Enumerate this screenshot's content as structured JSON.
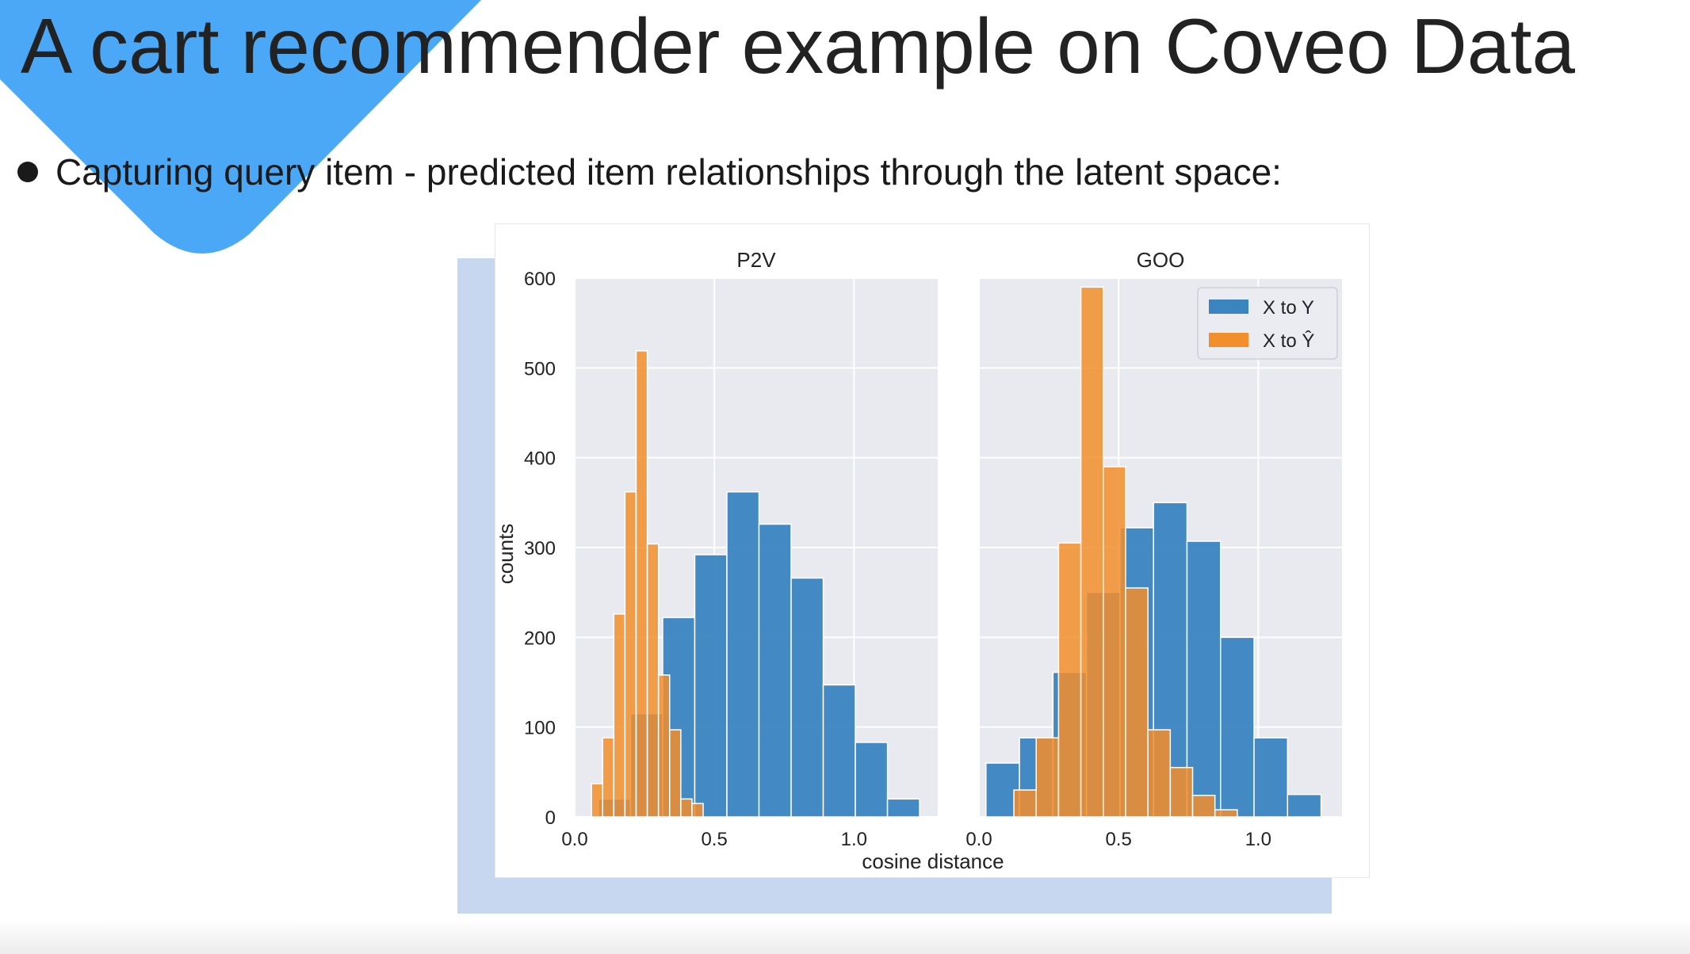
{
  "slide": {
    "title": "A cart recommender example on Coveo Data",
    "bullet": "Capturing query item - predicted item relationships through the latent space:"
  },
  "colors": {
    "accent_triangle": "#4aa8f7",
    "series_blue": "#3a84c0",
    "series_orange": "#f28e2b",
    "panel_bg": "#e9e9f0",
    "shadow": "#c6d7ef"
  },
  "chart_data": [
    {
      "type": "histogram",
      "title": "P2V",
      "xlabel": "cosine distance",
      "ylabel": "counts",
      "xlim": [
        0.0,
        1.3
      ],
      "ylim": [
        0,
        600
      ],
      "xticks": [
        "0.0",
        "0.5",
        "1.0"
      ],
      "yticks": [
        "0",
        "100",
        "200",
        "300",
        "400",
        "500",
        "600"
      ],
      "grid": true,
      "series": [
        {
          "color": "#3a84c0",
          "bins": [
            {
              "x0": 0.085,
              "x1": 0.2,
              "count": 20
            },
            {
              "x0": 0.2,
              "x1": 0.315,
              "count": 115
            },
            {
              "x0": 0.315,
              "x1": 0.43,
              "count": 222
            },
            {
              "x0": 0.43,
              "x1": 0.545,
              "count": 292
            },
            {
              "x0": 0.545,
              "x1": 0.66,
              "count": 362
            },
            {
              "x0": 0.66,
              "x1": 0.775,
              "count": 326
            },
            {
              "x0": 0.775,
              "x1": 0.89,
              "count": 266
            },
            {
              "x0": 0.89,
              "x1": 1.005,
              "count": 147
            },
            {
              "x0": 1.005,
              "x1": 1.12,
              "count": 83
            },
            {
              "x0": 1.12,
              "x1": 1.235,
              "count": 20
            }
          ]
        },
        {
          "color": "#f28e2b",
          "bins": [
            {
              "x0": 0.06,
              "x1": 0.1,
              "count": 37
            },
            {
              "x0": 0.1,
              "x1": 0.14,
              "count": 88
            },
            {
              "x0": 0.14,
              "x1": 0.18,
              "count": 226
            },
            {
              "x0": 0.18,
              "x1": 0.22,
              "count": 362
            },
            {
              "x0": 0.22,
              "x1": 0.26,
              "count": 519
            },
            {
              "x0": 0.26,
              "x1": 0.3,
              "count": 304
            },
            {
              "x0": 0.3,
              "x1": 0.34,
              "count": 158
            },
            {
              "x0": 0.34,
              "x1": 0.38,
              "count": 97
            },
            {
              "x0": 0.38,
              "x1": 0.42,
              "count": 20
            },
            {
              "x0": 0.42,
              "x1": 0.46,
              "count": 15
            }
          ]
        }
      ]
    },
    {
      "type": "histogram",
      "title": "GOO",
      "xlabel": "cosine distance",
      "ylabel": "counts",
      "xlim": [
        0.0,
        1.3
      ],
      "ylim": [
        0,
        600
      ],
      "xticks": [
        "0.0",
        "0.5",
        "1.0"
      ],
      "yticks": [
        "0",
        "100",
        "200",
        "300",
        "400",
        "500",
        "600"
      ],
      "grid": true,
      "legend": {
        "placement": "top-right",
        "entries": [
          {
            "label": "X to Y",
            "color": "#3a84c0"
          },
          {
            "label": "X to Ŷ",
            "color": "#f28e2b"
          }
        ]
      },
      "series": [
        {
          "name": "X to Y",
          "color": "#3a84c0",
          "bins": [
            {
              "x0": 0.025,
              "x1": 0.145,
              "count": 60
            },
            {
              "x0": 0.145,
              "x1": 0.265,
              "count": 88
            },
            {
              "x0": 0.265,
              "x1": 0.385,
              "count": 161
            },
            {
              "x0": 0.385,
              "x1": 0.505,
              "count": 250
            },
            {
              "x0": 0.505,
              "x1": 0.625,
              "count": 322
            },
            {
              "x0": 0.625,
              "x1": 0.745,
              "count": 350
            },
            {
              "x0": 0.745,
              "x1": 0.865,
              "count": 307
            },
            {
              "x0": 0.865,
              "x1": 0.985,
              "count": 200
            },
            {
              "x0": 0.985,
              "x1": 1.105,
              "count": 88
            },
            {
              "x0": 1.105,
              "x1": 1.225,
              "count": 25
            }
          ]
        },
        {
          "name": "X to Ŷ",
          "color": "#f28e2b",
          "bins": [
            {
              "x0": 0.125,
              "x1": 0.205,
              "count": 30
            },
            {
              "x0": 0.205,
              "x1": 0.285,
              "count": 88
            },
            {
              "x0": 0.285,
              "x1": 0.365,
              "count": 305
            },
            {
              "x0": 0.365,
              "x1": 0.445,
              "count": 590
            },
            {
              "x0": 0.445,
              "x1": 0.525,
              "count": 390
            },
            {
              "x0": 0.525,
              "x1": 0.605,
              "count": 255
            },
            {
              "x0": 0.605,
              "x1": 0.685,
              "count": 97
            },
            {
              "x0": 0.685,
              "x1": 0.765,
              "count": 55
            },
            {
              "x0": 0.765,
              "x1": 0.845,
              "count": 24
            },
            {
              "x0": 0.845,
              "x1": 0.925,
              "count": 8
            }
          ]
        }
      ]
    }
  ]
}
